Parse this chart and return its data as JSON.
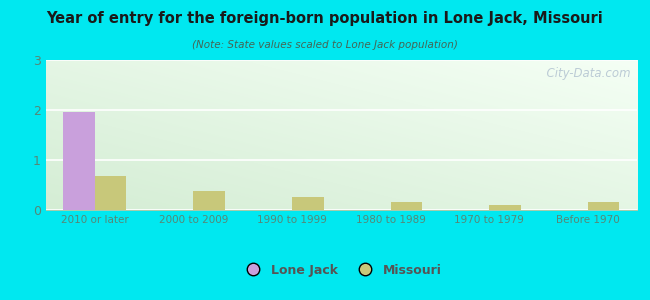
{
  "title": "Year of entry for the foreign-born population in Lone Jack, Missouri",
  "subtitle": "(Note: State values scaled to Lone Jack population)",
  "categories": [
    "2010 or later",
    "2000 to 2009",
    "1990 to 1999",
    "1980 to 1989",
    "1970 to 1979",
    "Before 1970"
  ],
  "lone_jack_values": [
    1.96,
    0,
    0,
    0,
    0,
    0
  ],
  "missouri_values": [
    0.68,
    0.38,
    0.27,
    0.17,
    0.1,
    0.17
  ],
  "lone_jack_color": "#c9a0dc",
  "missouri_color": "#c8c87a",
  "background_color": "#00e8f0",
  "gradient_top_left": "#d4edd4",
  "gradient_bottom_right": "#f5fff5",
  "ylim": [
    0,
    3
  ],
  "yticks": [
    0,
    1,
    2,
    3
  ],
  "bar_width": 0.32,
  "legend_labels": [
    "Lone Jack",
    "Missouri"
  ],
  "watermark": "  City-Data.com"
}
